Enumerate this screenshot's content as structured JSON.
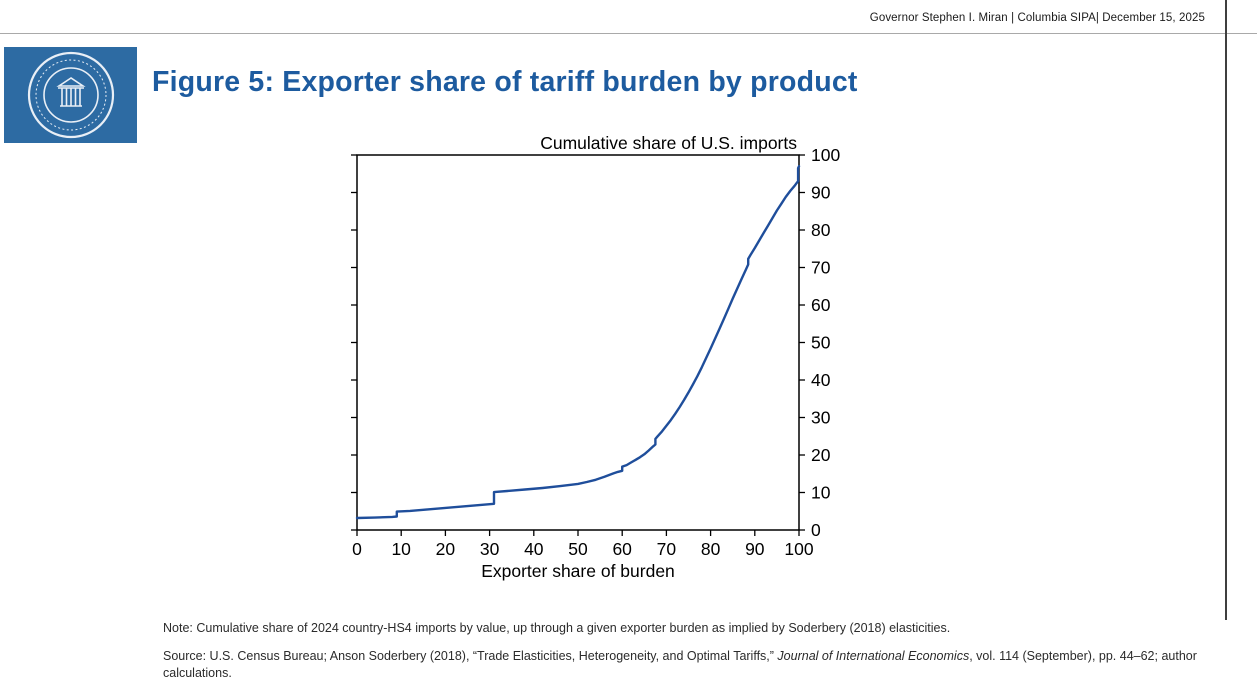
{
  "header": {
    "credit": "Governor Stephen I. Miran | Columbia SIPA| December 15, 2025"
  },
  "title": "Figure 5: Exporter share of tariff burden by product",
  "colors": {
    "title_blue": "#1d5b9f",
    "logo_box_blue": "#2d6ba3",
    "line_blue": "#1f4e9b"
  },
  "chart_data": {
    "type": "line",
    "title": "Cumulative share of U.S. imports",
    "xlabel": "Exporter share of burden",
    "ylabel": "",
    "xlim": [
      0,
      100
    ],
    "ylim": [
      0,
      100
    ],
    "xticks": [
      0,
      10,
      20,
      30,
      40,
      50,
      60,
      70,
      80,
      90,
      100
    ],
    "yticks": [
      0,
      10,
      20,
      30,
      40,
      50,
      60,
      70,
      80,
      90,
      100
    ],
    "grid": false,
    "legend": "none",
    "line_color": "#1f4e9b",
    "series": [
      {
        "name": "Cumulative share of U.S. imports vs. exporter share of burden",
        "points": [
          [
            0,
            3.2
          ],
          [
            4,
            3.3
          ],
          [
            8,
            3.5
          ],
          [
            9,
            3.6
          ],
          [
            9,
            4.9
          ],
          [
            12,
            5.1
          ],
          [
            16,
            5.5
          ],
          [
            20,
            5.9
          ],
          [
            24,
            6.3
          ],
          [
            28,
            6.7
          ],
          [
            31,
            7.0
          ],
          [
            31,
            10.1
          ],
          [
            34,
            10.4
          ],
          [
            38,
            10.8
          ],
          [
            42,
            11.2
          ],
          [
            46,
            11.7
          ],
          [
            50,
            12.3
          ],
          [
            52,
            12.8
          ],
          [
            54,
            13.4
          ],
          [
            56,
            14.2
          ],
          [
            58,
            15.1
          ],
          [
            59,
            15.5
          ],
          [
            60,
            15.8
          ],
          [
            60,
            16.9
          ],
          [
            61,
            17.3
          ],
          [
            62,
            18.0
          ],
          [
            63,
            18.7
          ],
          [
            64,
            19.4
          ],
          [
            65,
            20.2
          ],
          [
            66,
            21.2
          ],
          [
            67,
            22.3
          ],
          [
            67.5,
            22.8
          ],
          [
            67.5,
            24.3
          ],
          [
            68,
            25.0
          ],
          [
            69,
            26.3
          ],
          [
            70,
            27.8
          ],
          [
            71,
            29.3
          ],
          [
            72,
            31.0
          ],
          [
            73,
            32.8
          ],
          [
            74,
            34.7
          ],
          [
            75,
            36.7
          ],
          [
            76,
            38.8
          ],
          [
            77,
            41.0
          ],
          [
            78,
            43.4
          ],
          [
            79,
            45.9
          ],
          [
            80,
            48.4
          ],
          [
            81,
            51.0
          ],
          [
            82,
            53.6
          ],
          [
            83,
            56.3
          ],
          [
            84,
            59.0
          ],
          [
            85,
            61.7
          ],
          [
            86,
            64.3
          ],
          [
            87,
            66.9
          ],
          [
            88,
            69.5
          ],
          [
            88.5,
            70.8
          ],
          [
            88.5,
            72.3
          ],
          [
            89,
            73.3
          ],
          [
            90,
            75.2
          ],
          [
            91,
            77.2
          ],
          [
            92,
            79.2
          ],
          [
            93,
            81.2
          ],
          [
            94,
            83.2
          ],
          [
            95,
            85.2
          ],
          [
            96,
            87.0
          ],
          [
            97,
            88.8
          ],
          [
            98,
            90.4
          ],
          [
            99,
            91.8
          ],
          [
            99.5,
            92.6
          ],
          [
            99.8,
            93.0
          ],
          [
            99.8,
            96.5
          ],
          [
            100,
            97.0
          ]
        ]
      }
    ]
  },
  "notes": {
    "note": "Note: Cumulative share of 2024 country-HS4 imports by value, up through a given exporter burden as implied by Soderbery (2018) elasticities.",
    "source_prefix": "Source: U.S. Census Bureau; Anson Soderbery (2018), “Trade Elasticities, Heterogeneity, and Optimal Tariffs,” ",
    "source_italic": "Journal of International Economics",
    "source_suffix": ", vol. 114 (September), pp. 44–62; author calculations."
  }
}
